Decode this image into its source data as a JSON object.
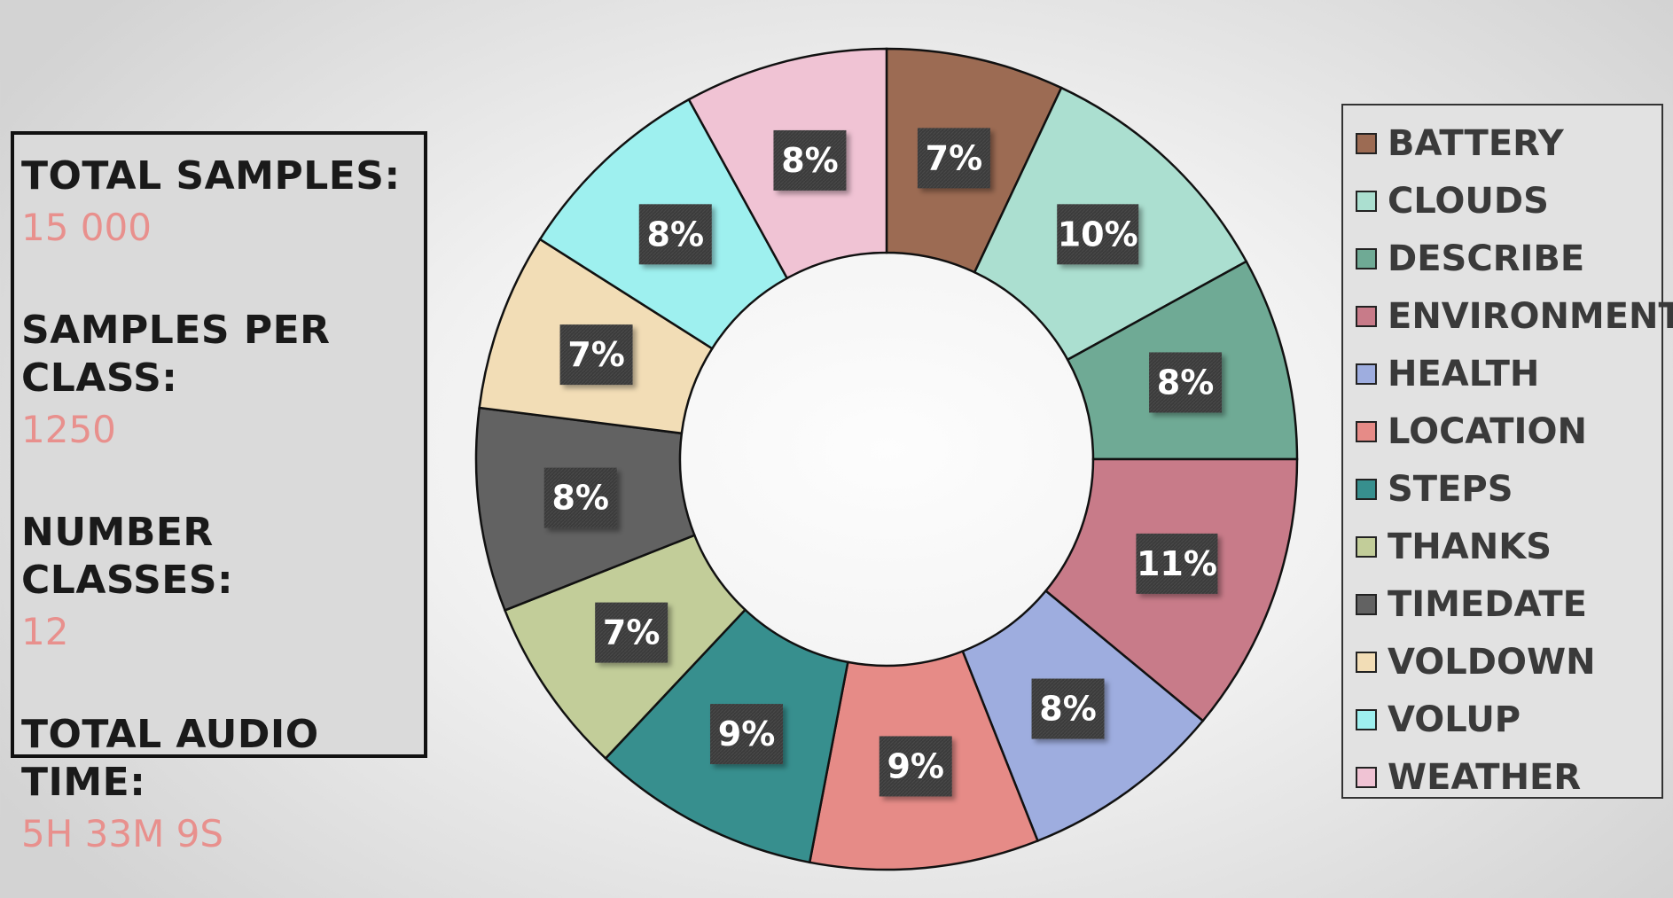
{
  "stats": {
    "total_samples_label": "TOTAL SAMPLES:",
    "total_samples_value": "15 000",
    "samples_per_class_label": "SAMPLES PER CLASS:",
    "samples_per_class_value": "1250",
    "number_classes_label": "NUMBER CLASSES:",
    "number_classes_value": "12",
    "total_audio_time_label": "TOTAL AUDIO TIME:",
    "total_audio_time_value": "5H 33M 9S",
    "value_color": "#e8908d"
  },
  "chart_data": {
    "type": "pie",
    "subtype": "donut",
    "legend_position": "right",
    "categories": [
      "BATTERY",
      "CLOUDS",
      "DESCRIBE",
      "ENVIRONMENT",
      "HEALTH",
      "LOCATION",
      "STEPS",
      "THANKS",
      "TIMEDATE",
      "VOLDOWN",
      "VOLUP",
      "WEATHER"
    ],
    "values": [
      7,
      10,
      8,
      11,
      8,
      9,
      9,
      7,
      8,
      7,
      8,
      8
    ],
    "labels": [
      "7%",
      "10%",
      "8%",
      "11%",
      "8%",
      "9%",
      "9%",
      "7%",
      "8%",
      "7%",
      "8%",
      "8%"
    ],
    "colors": [
      "#9c6b53",
      "#abdfd0",
      "#6faa95",
      "#c87b89",
      "#9eaddf",
      "#e68b87",
      "#378f8e",
      "#c2cd99",
      "#626262",
      "#f2ddb6",
      "#9ef0ef",
      "#f0c3d4"
    ]
  }
}
